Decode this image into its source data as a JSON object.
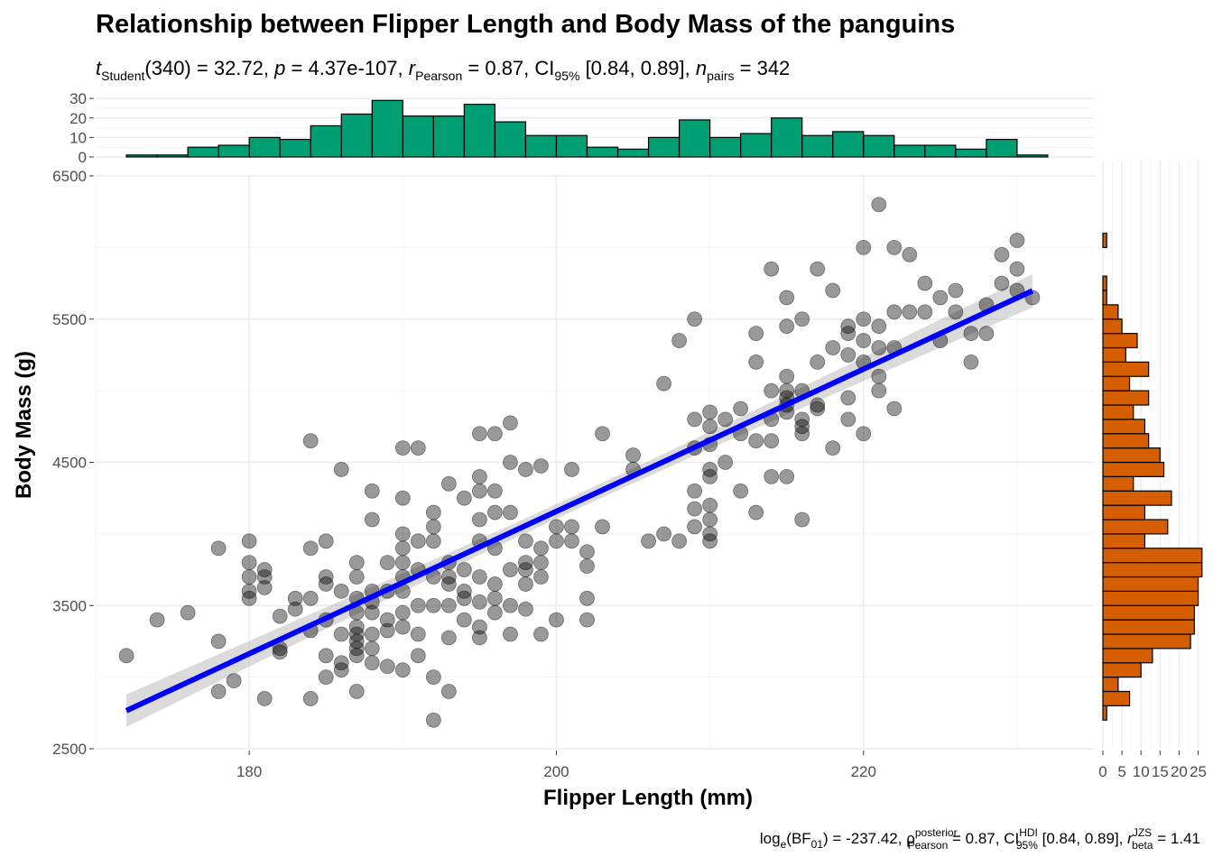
{
  "chart_data": {
    "type": "scatter",
    "title": "Relationship between Flipper Length and Body Mass of the panguins",
    "subtitle": {
      "t_label": "t",
      "t_sub": "Student",
      "t_df": "(340)",
      "t_value": "32.72",
      "p_label": "p",
      "p_value": "4.37e-107",
      "r_label": "r",
      "r_sub": "Pearson",
      "r_value": "0.87",
      "ci_label": "CI",
      "ci_sub": "95%",
      "ci_value": "[0.84, 0.89]",
      "n_label": "n",
      "n_sub": "pairs",
      "n_value": "342"
    },
    "caption": {
      "bf_label": "log",
      "bf_sub1": "e",
      "bf_mid": "(BF",
      "bf_sub2": "01",
      "bf_end": ")",
      "bf_value": "-237.42",
      "rho_label": "ρ",
      "rho_sup": "posterior",
      "rho_sub": "Pearson",
      "rho_value": "0.87",
      "ci_label": "CI",
      "ci_sup": "HDI",
      "ci_sub": "95%",
      "ci_value": "[0.84, 0.89]",
      "r_label": "r",
      "r_sup": "JZS",
      "r_sub": "beta",
      "r_value": "1.41"
    },
    "xlabel": "Flipper Length (mm)",
    "ylabel": "Body Mass (g)",
    "xlim": [
      170,
      235
    ],
    "ylim": [
      2500,
      6500
    ],
    "xticks": [
      180,
      200,
      220
    ],
    "yticks": [
      2500,
      3500,
      4500,
      5500,
      6500
    ],
    "grid": true,
    "regression": {
      "intercept": -5780.83,
      "slope": 49.69,
      "x_range": [
        172,
        231
      ],
      "color": "#0000ff"
    },
    "point_color": "#000000",
    "points": [
      [
        172,
        3150
      ],
      [
        174,
        3400
      ],
      [
        176,
        3450
      ],
      [
        178,
        3250
      ],
      [
        178,
        3900
      ],
      [
        178,
        2900
      ],
      [
        179,
        2975
      ],
      [
        180,
        3950
      ],
      [
        180,
        3800
      ],
      [
        180,
        3700
      ],
      [
        180,
        3600
      ],
      [
        180,
        3550
      ],
      [
        181,
        2850
      ],
      [
        181,
        3750
      ],
      [
        181,
        3700
      ],
      [
        181,
        3625
      ],
      [
        182,
        3425
      ],
      [
        182,
        3175
      ],
      [
        182,
        3200
      ],
      [
        183,
        3550
      ],
      [
        183,
        3475
      ],
      [
        184,
        4650
      ],
      [
        184,
        3900
      ],
      [
        184,
        3550
      ],
      [
        184,
        3325
      ],
      [
        184,
        2850
      ],
      [
        185,
        3950
      ],
      [
        185,
        3700
      ],
      [
        185,
        3650
      ],
      [
        185,
        3400
      ],
      [
        185,
        3150
      ],
      [
        185,
        3000
      ],
      [
        186,
        4450
      ],
      [
        186,
        3600
      ],
      [
        186,
        3300
      ],
      [
        186,
        3100
      ],
      [
        186,
        3050
      ],
      [
        187,
        3800
      ],
      [
        187,
        3700
      ],
      [
        187,
        3550
      ],
      [
        187,
        3450
      ],
      [
        187,
        3350
      ],
      [
        187,
        3300
      ],
      [
        187,
        3250
      ],
      [
        187,
        3200
      ],
      [
        187,
        3150
      ],
      [
        187,
        2900
      ],
      [
        188,
        4300
      ],
      [
        188,
        4100
      ],
      [
        188,
        3600
      ],
      [
        188,
        3525
      ],
      [
        188,
        3450
      ],
      [
        188,
        3300
      ],
      [
        188,
        3200
      ],
      [
        188,
        3100
      ],
      [
        189,
        3800
      ],
      [
        189,
        3600
      ],
      [
        189,
        3400
      ],
      [
        189,
        3325
      ],
      [
        189,
        3075
      ],
      [
        190,
        4600
      ],
      [
        190,
        4250
      ],
      [
        190,
        4000
      ],
      [
        190,
        3900
      ],
      [
        190,
        3800
      ],
      [
        190,
        3700
      ],
      [
        190,
        3600
      ],
      [
        190,
        3450
      ],
      [
        190,
        3350
      ],
      [
        190,
        3050
      ],
      [
        191,
        4600
      ],
      [
        191,
        3950
      ],
      [
        191,
        3750
      ],
      [
        191,
        3500
      ],
      [
        191,
        3300
      ],
      [
        191,
        3150
      ],
      [
        192,
        4150
      ],
      [
        192,
        4050
      ],
      [
        192,
        3950
      ],
      [
        192,
        3700
      ],
      [
        192,
        3500
      ],
      [
        192,
        3000
      ],
      [
        192,
        2700
      ],
      [
        193,
        4350
      ],
      [
        193,
        3800
      ],
      [
        193,
        3700
      ],
      [
        193,
        3650
      ],
      [
        193,
        3500
      ],
      [
        193,
        3275
      ],
      [
        193,
        2900
      ],
      [
        194,
        4250
      ],
      [
        194,
        3750
      ],
      [
        194,
        3600
      ],
      [
        194,
        3550
      ],
      [
        194,
        3400
      ],
      [
        195,
        4700
      ],
      [
        195,
        4400
      ],
      [
        195,
        4300
      ],
      [
        195,
        4100
      ],
      [
        195,
        3950
      ],
      [
        195,
        3700
      ],
      [
        195,
        3525
      ],
      [
        195,
        3350
      ],
      [
        195,
        3275
      ],
      [
        196,
        4700
      ],
      [
        196,
        4300
      ],
      [
        196,
        4150
      ],
      [
        196,
        3900
      ],
      [
        196,
        3650
      ],
      [
        196,
        3550
      ],
      [
        196,
        3450
      ],
      [
        197,
        4775
      ],
      [
        197,
        4500
      ],
      [
        197,
        4150
      ],
      [
        197,
        3750
      ],
      [
        197,
        3500
      ],
      [
        197,
        3300
      ],
      [
        198,
        4450
      ],
      [
        198,
        3950
      ],
      [
        198,
        3800
      ],
      [
        198,
        3750
      ],
      [
        198,
        3650
      ],
      [
        198,
        3475
      ],
      [
        199,
        4475
      ],
      [
        199,
        3900
      ],
      [
        199,
        3800
      ],
      [
        199,
        3700
      ],
      [
        199,
        3300
      ],
      [
        200,
        4050
      ],
      [
        200,
        3950
      ],
      [
        200,
        3400
      ],
      [
        201,
        4450
      ],
      [
        201,
        4050
      ],
      [
        201,
        3950
      ],
      [
        202,
        3875
      ],
      [
        202,
        3775
      ],
      [
        202,
        3550
      ],
      [
        202,
        3400
      ],
      [
        203,
        4700
      ],
      [
        203,
        4050
      ],
      [
        205,
        4550
      ],
      [
        205,
        4450
      ],
      [
        206,
        3950
      ],
      [
        207,
        5050
      ],
      [
        207,
        4000
      ],
      [
        208,
        5350
      ],
      [
        208,
        3950
      ],
      [
        209,
        5500
      ],
      [
        209,
        4800
      ],
      [
        209,
        4600
      ],
      [
        209,
        4300
      ],
      [
        209,
        4175
      ],
      [
        209,
        4050
      ],
      [
        210,
        4850
      ],
      [
        210,
        4750
      ],
      [
        210,
        4625
      ],
      [
        210,
        4450
      ],
      [
        210,
        4400
      ],
      [
        210,
        4200
      ],
      [
        210,
        4100
      ],
      [
        210,
        4000
      ],
      [
        210,
        3950
      ],
      [
        211,
        4800
      ],
      [
        211,
        4500
      ],
      [
        212,
        4875
      ],
      [
        212,
        4700
      ],
      [
        212,
        4300
      ],
      [
        213,
        5400
      ],
      [
        213,
        5200
      ],
      [
        213,
        4650
      ],
      [
        213,
        4150
      ],
      [
        214,
        5850
      ],
      [
        214,
        5000
      ],
      [
        214,
        4800
      ],
      [
        214,
        4650
      ],
      [
        214,
        4400
      ],
      [
        215,
        5650
      ],
      [
        215,
        5450
      ],
      [
        215,
        5100
      ],
      [
        215,
        5000
      ],
      [
        215,
        4950
      ],
      [
        215,
        4900
      ],
      [
        215,
        4850
      ],
      [
        215,
        4400
      ],
      [
        216,
        5500
      ],
      [
        216,
        5000
      ],
      [
        216,
        4800
      ],
      [
        216,
        4750
      ],
      [
        216,
        4700
      ],
      [
        216,
        4100
      ],
      [
        217,
        5850
      ],
      [
        217,
        5200
      ],
      [
        217,
        4900
      ],
      [
        217,
        4875
      ],
      [
        218,
        5700
      ],
      [
        218,
        5300
      ],
      [
        218,
        4600
      ],
      [
        219,
        5450
      ],
      [
        219,
        5400
      ],
      [
        219,
        5250
      ],
      [
        219,
        4950
      ],
      [
        219,
        4800
      ],
      [
        220,
        6000
      ],
      [
        220,
        5500
      ],
      [
        220,
        5350
      ],
      [
        220,
        5200
      ],
      [
        220,
        4700
      ],
      [
        221,
        6300
      ],
      [
        221,
        5450
      ],
      [
        221,
        5300
      ],
      [
        221,
        5100
      ],
      [
        221,
        5000
      ],
      [
        222,
        6000
      ],
      [
        222,
        5550
      ],
      [
        222,
        5300
      ],
      [
        222,
        4875
      ],
      [
        223,
        5950
      ],
      [
        223,
        5550
      ],
      [
        224,
        5750
      ],
      [
        224,
        5550
      ],
      [
        225,
        5650
      ],
      [
        225,
        5350
      ],
      [
        226,
        5700
      ],
      [
        226,
        5550
      ],
      [
        227,
        5400
      ],
      [
        227,
        5200
      ],
      [
        228,
        5600
      ],
      [
        228,
        5400
      ],
      [
        229,
        5950
      ],
      [
        229,
        5750
      ],
      [
        230,
        6050
      ],
      [
        230,
        5850
      ],
      [
        230,
        5700
      ],
      [
        231,
        5650
      ]
    ],
    "top_histogram": {
      "color": "#009e73",
      "yticks": [
        0,
        10,
        20,
        30
      ],
      "bins": [
        [
          172,
          174,
          1
        ],
        [
          174,
          176,
          1
        ],
        [
          176,
          178,
          5
        ],
        [
          178,
          180,
          6
        ],
        [
          180,
          182,
          10
        ],
        [
          182,
          184,
          9
        ],
        [
          184,
          186,
          16
        ],
        [
          186,
          188,
          22
        ],
        [
          188,
          190,
          29
        ],
        [
          190,
          192,
          21
        ],
        [
          192,
          194,
          21
        ],
        [
          194,
          196,
          27
        ],
        [
          196,
          198,
          18
        ],
        [
          198,
          200,
          11
        ],
        [
          200,
          202,
          11
        ],
        [
          202,
          204,
          5
        ],
        [
          204,
          206,
          4
        ],
        [
          206,
          208,
          10
        ],
        [
          208,
          210,
          19
        ],
        [
          210,
          212,
          10
        ],
        [
          212,
          214,
          12
        ],
        [
          214,
          216,
          20
        ],
        [
          216,
          218,
          11
        ],
        [
          218,
          220,
          13
        ],
        [
          220,
          222,
          11
        ],
        [
          222,
          224,
          6
        ],
        [
          224,
          226,
          6
        ],
        [
          226,
          228,
          4
        ],
        [
          228,
          230,
          9
        ],
        [
          230,
          232,
          1
        ]
      ]
    },
    "right_histogram": {
      "color": "#d55e00",
      "xticks": [
        0,
        5,
        10,
        15,
        20,
        25
      ],
      "xtick_labels": [
        "0",
        "5",
        "10",
        "15",
        "20",
        "25"
      ],
      "bins": [
        [
          2700,
          2800,
          1
        ],
        [
          2800,
          2900,
          7
        ],
        [
          2900,
          3000,
          4
        ],
        [
          3000,
          3100,
          10
        ],
        [
          3100,
          3200,
          13
        ],
        [
          3200,
          3300,
          23
        ],
        [
          3300,
          3400,
          24
        ],
        [
          3400,
          3500,
          24
        ],
        [
          3500,
          3600,
          25
        ],
        [
          3600,
          3700,
          25
        ],
        [
          3700,
          3800,
          26
        ],
        [
          3800,
          3900,
          26
        ],
        [
          3900,
          4000,
          11
        ],
        [
          4000,
          4100,
          17
        ],
        [
          4100,
          4200,
          11
        ],
        [
          4200,
          4300,
          18
        ],
        [
          4300,
          4400,
          8
        ],
        [
          4400,
          4500,
          16
        ],
        [
          4500,
          4600,
          15
        ],
        [
          4600,
          4700,
          12
        ],
        [
          4700,
          4800,
          11
        ],
        [
          4800,
          4900,
          8
        ],
        [
          4900,
          5000,
          12
        ],
        [
          5000,
          5100,
          7
        ],
        [
          5100,
          5200,
          12
        ],
        [
          5200,
          5300,
          6
        ],
        [
          5300,
          5400,
          9
        ],
        [
          5400,
          5500,
          5
        ],
        [
          5500,
          5600,
          4
        ],
        [
          5600,
          5700,
          1
        ],
        [
          5700,
          5800,
          1
        ],
        [
          6000,
          6100,
          1
        ]
      ]
    }
  }
}
